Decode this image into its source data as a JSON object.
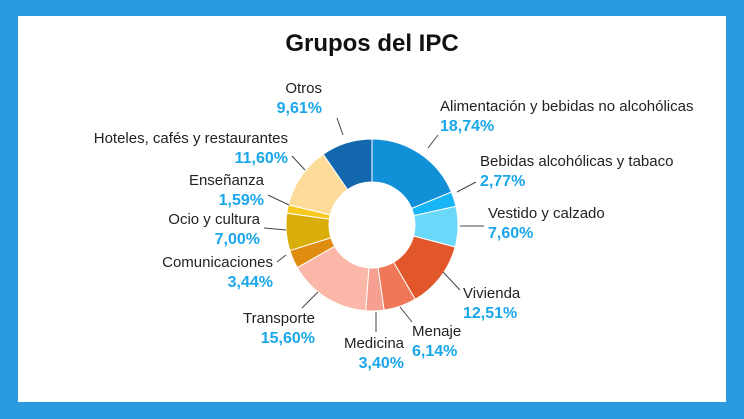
{
  "chart_data": {
    "type": "pie",
    "title": "Grupos del IPC",
    "segments": [
      {
        "name": "Alimentación y bebidas no alcohólicas",
        "value": 18.74,
        "label": "18,74%",
        "color": "#1190d8"
      },
      {
        "name": "Bebidas alcohólicas y tabaco",
        "value": 2.77,
        "label": "2,77%",
        "color": "#16b5f5"
      },
      {
        "name": "Vestido y calzado",
        "value": 7.6,
        "label": "7,60%",
        "color": "#6ad8f8"
      },
      {
        "name": "Vivienda",
        "value": 12.51,
        "label": "12,51%",
        "color": "#e2562b"
      },
      {
        "name": "Menaje",
        "value": 6.14,
        "label": "6,14%",
        "color": "#f07858"
      },
      {
        "name": "Medicina",
        "value": 3.4,
        "label": "3,40%",
        "color": "#f5a090"
      },
      {
        "name": "Transporte",
        "value": 15.6,
        "label": "15,60%",
        "color": "#fbb8a8"
      },
      {
        "name": "Comunicaciones",
        "value": 3.44,
        "label": "3,44%",
        "color": "#e08c10"
      },
      {
        "name": "Ocio y cultura",
        "value": 7.0,
        "label": "7,00%",
        "color": "#d9ad0a"
      },
      {
        "name": "Enseñanza",
        "value": 1.59,
        "label": "1,59%",
        "color": "#f7c81e"
      },
      {
        "name": "Hoteles, cafés y restaurantes",
        "value": 11.6,
        "label": "11,60%",
        "color": "#fddb98"
      },
      {
        "name": "Otros",
        "value": 9.61,
        "label": "9,61%",
        "color": "#1467ad"
      }
    ]
  },
  "colors": {
    "background": "#2b9be0",
    "card": "#ffffff",
    "percent_text": "#1aa6ea"
  }
}
